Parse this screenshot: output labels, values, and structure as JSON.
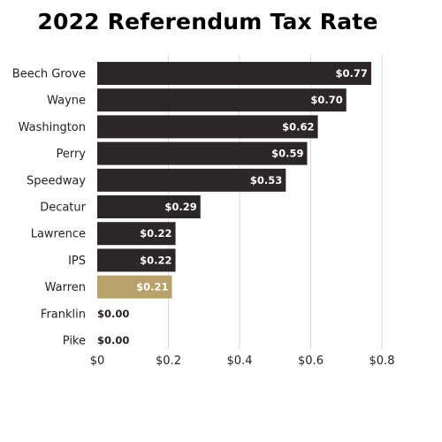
{
  "chart_data": {
    "type": "bar",
    "orientation": "horizontal",
    "title": "2022 Referendum Tax Rate",
    "categories": [
      "Beech Grove",
      "Wayne",
      "Washington",
      "Perry",
      "Speedway",
      "Decatur",
      "Lawrence",
      "IPS",
      "Warren",
      "Franklin",
      "Pike"
    ],
    "values": [
      0.77,
      0.7,
      0.62,
      0.59,
      0.53,
      0.29,
      0.22,
      0.22,
      0.21,
      0.0,
      0.0
    ],
    "data_labels": [
      "$0.77",
      "$0.70",
      "$0.62",
      "$0.59",
      "$0.53",
      "$0.29",
      "$0.22",
      "$0.22",
      "$0.21",
      "$0.00",
      "$0.00"
    ],
    "highlight_category": "Warren",
    "xlim": [
      0,
      0.8
    ],
    "x_ticks": [
      0,
      0.2,
      0.4,
      0.6,
      0.8
    ],
    "x_tick_labels": [
      "$0",
      "$0.2",
      "$0.4",
      "$0.6",
      "$0.8"
    ],
    "grid": "vertical",
    "xlabel": "",
    "ylabel": "",
    "colors": {
      "bar": "#2b2627",
      "highlight": "#b9a26a",
      "label_on_bar": "#ffffff",
      "label_off_bar": "#231f20",
      "grid": "#d9d9d9"
    }
  }
}
